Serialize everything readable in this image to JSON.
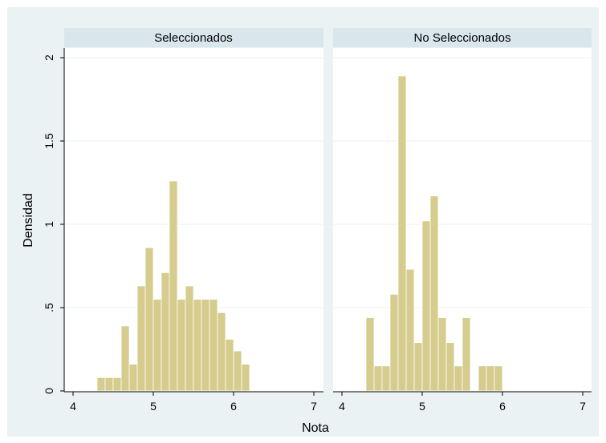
{
  "chart_data": {
    "type": "bar",
    "xlabel": "Nota",
    "ylabel": "Densidad",
    "xlim": [
      4,
      7
    ],
    "ylim": [
      0,
      2
    ],
    "xticks": [
      "4",
      "5",
      "6",
      "7"
    ],
    "yticks": [
      "0",
      ".5",
      "1",
      "1.5",
      "2"
    ],
    "bin_width": 0.1,
    "grid": true,
    "colors": {
      "background": "#eaf2f3",
      "plot_background": "#ffffff",
      "strip": "#d9e6eb",
      "bar_fill": "#d6cc8d",
      "bar_edge": "#ffffff",
      "grid": "#eaf2f3"
    },
    "panels": [
      {
        "name": "Seleccionados",
        "bins": [
          {
            "x0": 4.3,
            "height": 0.08
          },
          {
            "x0": 4.4,
            "height": 0.08
          },
          {
            "x0": 4.5,
            "height": 0.08
          },
          {
            "x0": 4.6,
            "height": 0.39
          },
          {
            "x0": 4.7,
            "height": 0.16
          },
          {
            "x0": 4.8,
            "height": 0.63
          },
          {
            "x0": 4.9,
            "height": 0.86
          },
          {
            "x0": 5.0,
            "height": 0.55
          },
          {
            "x0": 5.1,
            "height": 0.71
          },
          {
            "x0": 5.2,
            "height": 1.26
          },
          {
            "x0": 5.3,
            "height": 0.55
          },
          {
            "x0": 5.4,
            "height": 0.63
          },
          {
            "x0": 5.5,
            "height": 0.55
          },
          {
            "x0": 5.6,
            "height": 0.55
          },
          {
            "x0": 5.7,
            "height": 0.55
          },
          {
            "x0": 5.8,
            "height": 0.47
          },
          {
            "x0": 5.9,
            "height": 0.31
          },
          {
            "x0": 6.0,
            "height": 0.24
          },
          {
            "x0": 6.1,
            "height": 0.16
          }
        ]
      },
      {
        "name": "No Seleccionados",
        "bins": [
          {
            "x0": 4.3,
            "height": 0.44
          },
          {
            "x0": 4.4,
            "height": 0.15
          },
          {
            "x0": 4.5,
            "height": 0.15
          },
          {
            "x0": 4.6,
            "height": 0.58
          },
          {
            "x0": 4.7,
            "height": 1.89
          },
          {
            "x0": 4.8,
            "height": 0.73
          },
          {
            "x0": 4.9,
            "height": 0.29
          },
          {
            "x0": 5.0,
            "height": 1.02
          },
          {
            "x0": 5.1,
            "height": 1.17
          },
          {
            "x0": 5.2,
            "height": 0.44
          },
          {
            "x0": 5.3,
            "height": 0.29
          },
          {
            "x0": 5.4,
            "height": 0.15
          },
          {
            "x0": 5.5,
            "height": 0.44
          },
          {
            "x0": 5.6,
            "height": 0.0
          },
          {
            "x0": 5.7,
            "height": 0.15
          },
          {
            "x0": 5.8,
            "height": 0.15
          },
          {
            "x0": 5.9,
            "height": 0.15
          }
        ]
      }
    ]
  }
}
